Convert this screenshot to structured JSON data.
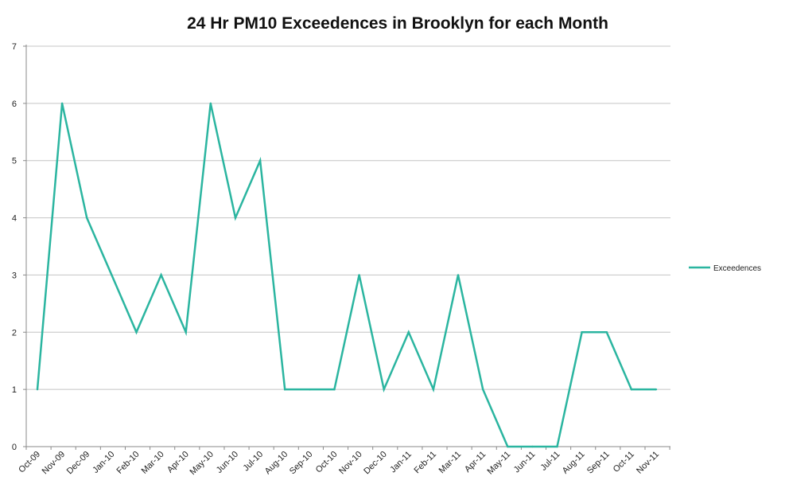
{
  "chart_data": {
    "type": "line",
    "title": "24 Hr PM10 Exceedences in Brooklyn for each Month",
    "xlabel": "",
    "ylabel": "",
    "ylim": [
      0,
      7
    ],
    "yticks": [
      0,
      1,
      2,
      3,
      4,
      5,
      6,
      7
    ],
    "grid": true,
    "legend_position": "right",
    "categories": [
      "Oct-09",
      "Nov-09",
      "Dec-09",
      "Jan-10",
      "Feb-10",
      "Mar-10",
      "Apr-10",
      "May-10",
      "Jun-10",
      "Jul-10",
      "Aug-10",
      "Sep-10",
      "Oct-10",
      "Nov-10",
      "Dec-10",
      "Jan-11",
      "Feb-11",
      "Mar-11",
      "Apr-11",
      "May-11",
      "Jun-11",
      "Jul-11",
      "Aug-11",
      "Sep-11",
      "Oct-11",
      "Nov-11"
    ],
    "series": [
      {
        "name": "Exceedences",
        "color": "#2bb5a0",
        "values": [
          1,
          6,
          4,
          3,
          2,
          3,
          2,
          6,
          4,
          5,
          1,
          1,
          1,
          3,
          1,
          2,
          1,
          3,
          1,
          0,
          0,
          0,
          2,
          2,
          1,
          1
        ]
      }
    ]
  }
}
